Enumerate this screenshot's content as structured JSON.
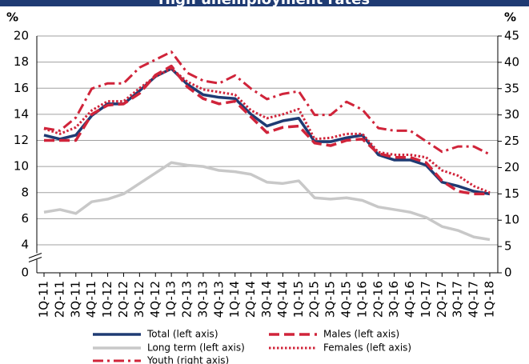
{
  "chart_data": {
    "type": "line",
    "title": "High unemployment rates",
    "y_label": "%",
    "y2_label": "%",
    "categories": [
      "1Q-11",
      "2Q-11",
      "3Q-11",
      "4Q-11",
      "1Q-12",
      "2Q-12",
      "3Q-12",
      "4Q-12",
      "1Q-13",
      "2Q-13",
      "3Q-13",
      "4Q-13",
      "1Q-14",
      "2Q-14",
      "3Q-14",
      "4Q-14",
      "1Q-15",
      "2Q-15",
      "3Q-15",
      "4Q-15",
      "1Q-16",
      "2Q-16",
      "3Q-16",
      "4Q-16",
      "1Q-17",
      "2Q-17",
      "3Q-17",
      "4Q-17",
      "1Q-18"
    ],
    "series": [
      {
        "name": "Total (left axis)",
        "color": "#1f3b73",
        "dash": "solid",
        "values": [
          12.4,
          12.1,
          12.4,
          13.9,
          14.8,
          14.8,
          15.8,
          16.9,
          17.5,
          16.3,
          15.5,
          15.3,
          15.2,
          14.0,
          13.1,
          13.5,
          13.7,
          11.9,
          11.9,
          12.2,
          12.4,
          10.9,
          10.5,
          10.5,
          10.1,
          8.8,
          8.5,
          8.1,
          7.9
        ]
      },
      {
        "name": "Males (left axis)",
        "color": "#d0243a",
        "dash": "dashed",
        "values": [
          12.0,
          12.0,
          12.0,
          14.0,
          14.7,
          14.8,
          15.6,
          17.0,
          17.7,
          16.1,
          15.2,
          14.8,
          15.0,
          13.8,
          12.6,
          13.0,
          13.1,
          11.8,
          11.6,
          12.0,
          12.1,
          11.0,
          10.7,
          10.7,
          10.3,
          8.9,
          8.1,
          7.9,
          7.9
        ]
      },
      {
        "name": "Long term (left axis)",
        "color": "#c8c8c8",
        "dash": "solid",
        "values": [
          6.5,
          6.7,
          6.4,
          7.3,
          7.5,
          7.9,
          8.7,
          9.5,
          10.3,
          10.1,
          10.0,
          9.7,
          9.6,
          9.4,
          8.8,
          8.7,
          8.9,
          7.6,
          7.5,
          7.6,
          7.4,
          6.9,
          6.7,
          6.5,
          6.1,
          5.4,
          5.1,
          4.6,
          4.4
        ]
      },
      {
        "name": "Females (left axis)",
        "color": "#d0243a",
        "dash": "dotted",
        "values": [
          12.9,
          12.5,
          13.0,
          14.3,
          15.0,
          15.0,
          16.0,
          16.9,
          17.5,
          16.5,
          15.9,
          15.7,
          15.5,
          14.3,
          13.7,
          14.0,
          14.4,
          12.1,
          12.2,
          12.5,
          12.5,
          11.1,
          10.9,
          10.9,
          10.7,
          9.7,
          9.3,
          8.5,
          8.0
        ]
      },
      {
        "name": "Youth (right axis)",
        "color": "#d0243a",
        "dash": "dashdot",
        "axis": "y2",
        "values": [
          27.5,
          27,
          29.5,
          35,
          36,
          36,
          39,
          40.5,
          42,
          38,
          36.5,
          36,
          37.5,
          35,
          33,
          34,
          34.5,
          30,
          30,
          32.5,
          31,
          27.5,
          27,
          27,
          25,
          23,
          24,
          24,
          22.5
        ]
      }
    ],
    "ylim": [
      0,
      20
    ],
    "yticks": [
      0,
      4,
      6,
      8,
      10,
      12,
      14,
      16,
      18,
      20
    ],
    "axis_break": true,
    "y2lim": [
      0,
      45
    ],
    "y2ticks": [
      0,
      5,
      10,
      15,
      20,
      25,
      30,
      35,
      40,
      45
    ],
    "grid": true
  }
}
